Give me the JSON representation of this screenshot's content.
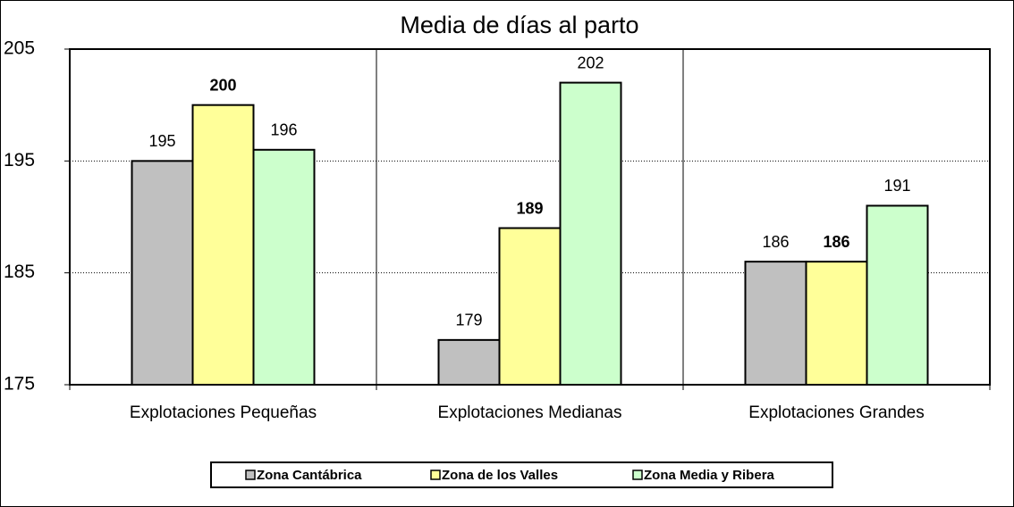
{
  "chart_data": {
    "type": "bar",
    "title": "Media de días al parto",
    "categories": [
      "Explotaciones Pequeñas",
      "Explotaciones Medianas",
      "Explotaciones Grandes"
    ],
    "series": [
      {
        "name": "Zona Cantábrica",
        "color": "#c0c0c0",
        "values": [
          195,
          179,
          186
        ]
      },
      {
        "name": "Zona de los Valles",
        "color": "#ffff99",
        "values": [
          200,
          189,
          186
        ],
        "label_weight": "bold"
      },
      {
        "name": "Zona Media y Ribera",
        "color": "#ccffcc",
        "values": [
          196,
          202,
          191
        ]
      }
    ],
    "ylim": [
      175,
      205
    ],
    "yticks": [
      175,
      185,
      195,
      205
    ],
    "grid": true,
    "legend": "bottom"
  }
}
